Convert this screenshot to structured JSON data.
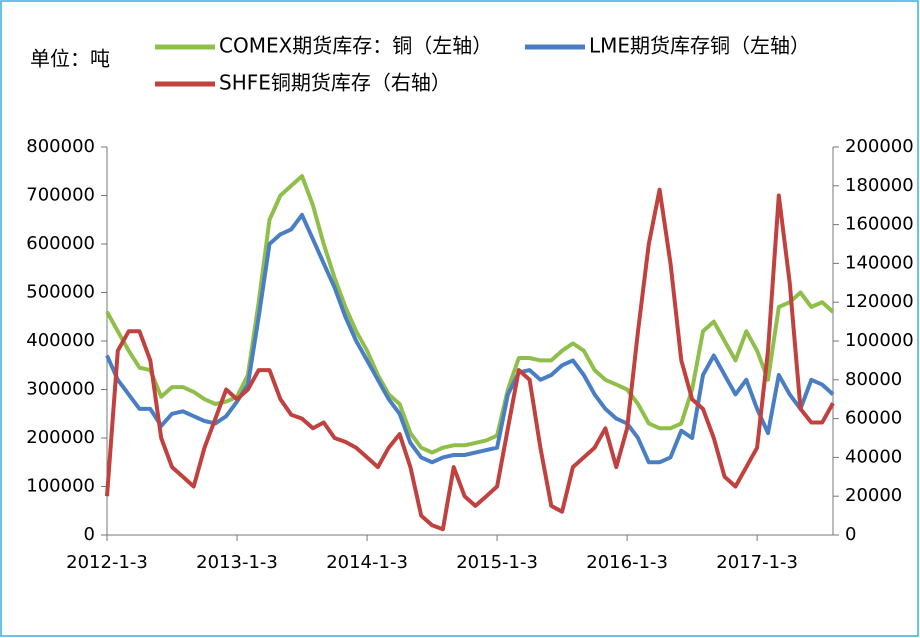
{
  "chart_data": {
    "type": "line",
    "unit_label": "单位：吨",
    "categories": [
      "2012-1-3",
      null,
      null,
      null,
      null,
      null,
      null,
      null,
      null,
      null,
      null,
      null,
      "2013-1-3",
      null,
      null,
      null,
      null,
      null,
      null,
      null,
      null,
      null,
      null,
      null,
      "2014-1-3",
      null,
      null,
      null,
      null,
      null,
      null,
      null,
      null,
      null,
      null,
      null,
      "2015-1-3",
      null,
      null,
      null,
      null,
      null,
      null,
      null,
      null,
      null,
      null,
      null,
      "2016-1-3",
      null,
      null,
      null,
      null,
      null,
      null,
      null,
      null,
      null,
      null,
      null,
      "2017-1-3",
      null,
      null,
      null,
      null,
      null,
      null,
      null
    ],
    "series": [
      {
        "name": "COMEX期货库存：铜（左轴）",
        "color": "#8fbf4a",
        "axis": "y",
        "values": [
          460000,
          420000,
          380000,
          345000,
          340000,
          285000,
          305000,
          305000,
          295000,
          280000,
          270000,
          275000,
          285000,
          330000,
          480000,
          650000,
          700000,
          720000,
          740000,
          680000,
          600000,
          530000,
          470000,
          420000,
          380000,
          330000,
          290000,
          270000,
          210000,
          180000,
          170000,
          180000,
          185000,
          185000,
          190000,
          195000,
          205000,
          300000,
          365000,
          365000,
          360000,
          360000,
          380000,
          395000,
          380000,
          340000,
          320000,
          310000,
          300000,
          270000,
          230000,
          220000,
          220000,
          230000,
          300000,
          420000,
          440000,
          400000,
          360000,
          420000,
          380000,
          320000,
          470000,
          480000,
          500000,
          470000,
          480000,
          460000
        ]
      },
      {
        "name": "LME期货库存铜（左轴）",
        "color": "#4a7ec4",
        "axis": "y",
        "values": [
          370000,
          320000,
          290000,
          260000,
          260000,
          225000,
          250000,
          255000,
          245000,
          235000,
          230000,
          245000,
          275000,
          310000,
          450000,
          600000,
          620000,
          630000,
          660000,
          610000,
          560000,
          510000,
          450000,
          400000,
          360000,
          320000,
          280000,
          250000,
          190000,
          160000,
          150000,
          160000,
          165000,
          165000,
          170000,
          175000,
          180000,
          290000,
          335000,
          340000,
          320000,
          330000,
          350000,
          360000,
          330000,
          290000,
          260000,
          240000,
          230000,
          200000,
          150000,
          150000,
          160000,
          215000,
          200000,
          330000,
          370000,
          330000,
          290000,
          320000,
          260000,
          210000,
          330000,
          290000,
          260000,
          320000,
          310000,
          290000
        ]
      },
      {
        "name": "SHFE铜期货库存（右轴）",
        "color": "#c0413e",
        "axis": "y2",
        "values": [
          20000,
          95000,
          105000,
          105000,
          90000,
          50000,
          35000,
          30000,
          25000,
          45000,
          60000,
          75000,
          70000,
          75000,
          85000,
          85000,
          70000,
          62000,
          60000,
          55000,
          58000,
          50000,
          48000,
          45000,
          40000,
          35000,
          45000,
          52000,
          35000,
          10000,
          5000,
          3000,
          35000,
          20000,
          15000,
          20000,
          25000,
          55000,
          85000,
          80000,
          45000,
          15000,
          12000,
          35000,
          40000,
          45000,
          55000,
          35000,
          55000,
          105000,
          150000,
          178000,
          140000,
          90000,
          70000,
          65000,
          50000,
          30000,
          25000,
          35000,
          45000,
          95000,
          175000,
          130000,
          65000,
          58000,
          58000,
          68000
        ]
      }
    ],
    "ylim": [
      0,
      800000
    ],
    "yticks": [
      0,
      100000,
      200000,
      300000,
      400000,
      500000,
      600000,
      700000,
      800000
    ],
    "y2lim": [
      0,
      200000
    ],
    "y2ticks": [
      0,
      20000,
      40000,
      60000,
      80000,
      100000,
      120000,
      140000,
      160000,
      180000,
      200000
    ],
    "grid": false
  }
}
